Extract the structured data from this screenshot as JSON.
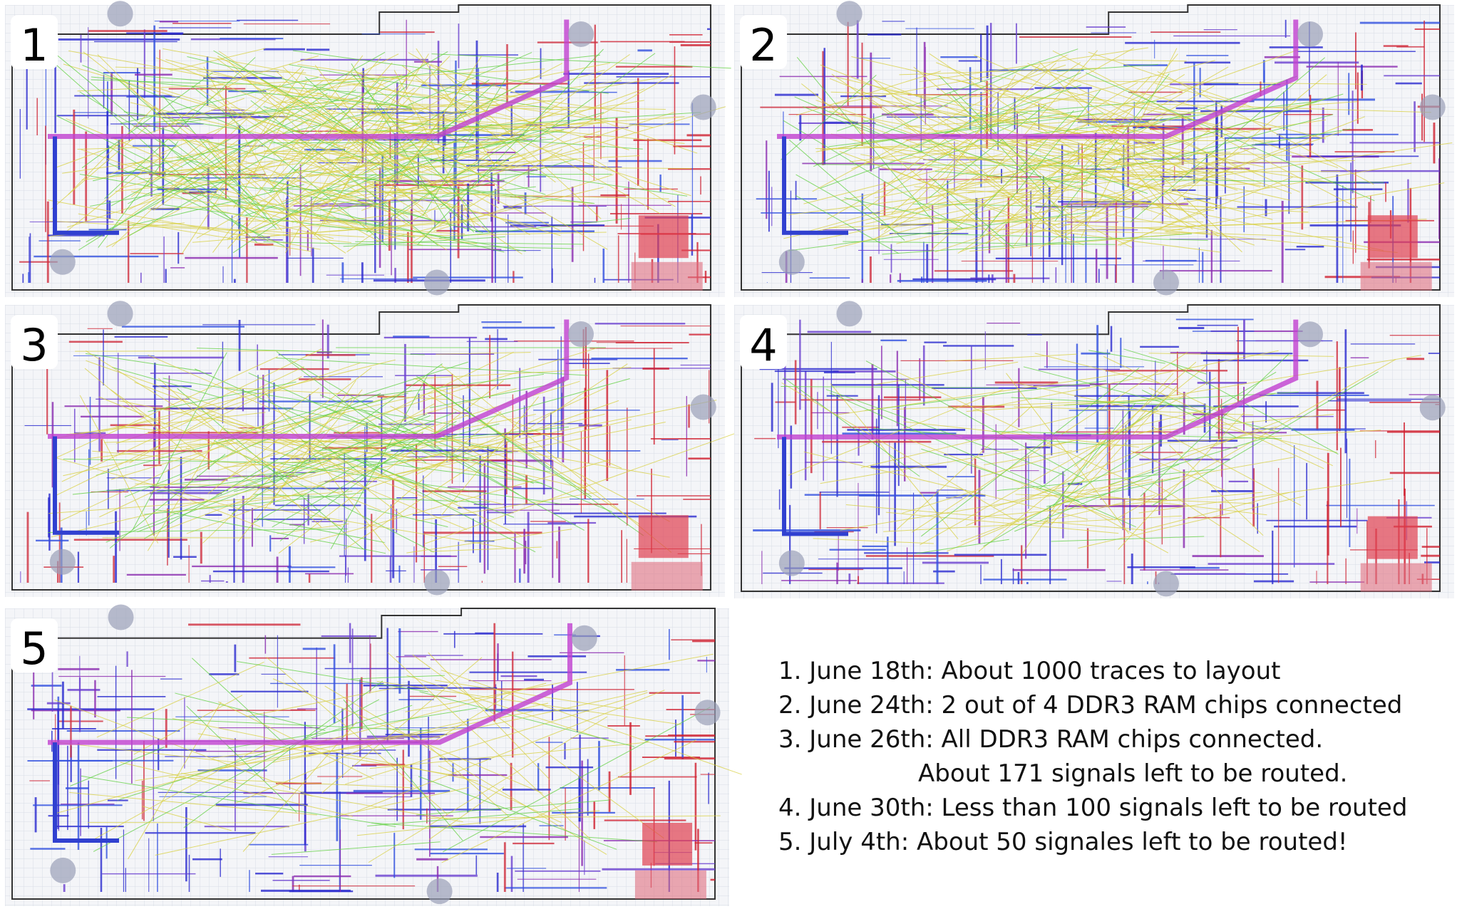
{
  "panels": [
    {
      "label": "1"
    },
    {
      "label": "2"
    },
    {
      "label": "3"
    },
    {
      "label": "4"
    },
    {
      "label": "5"
    }
  ],
  "notes": [
    [
      "1. June 18th: About 1000 traces to layout"
    ],
    [
      "2. June 24th: 2 out of 4 DDR3 RAM chips connected"
    ],
    [
      "3. June 26th: All DDR3 RAM chips connected.",
      "About 171 signals left to be routed."
    ],
    [
      "4. June 30th: Less than 100 signals left to be routed"
    ],
    [
      "5. July 4th: About 50 signales left to be routed!"
    ]
  ]
}
